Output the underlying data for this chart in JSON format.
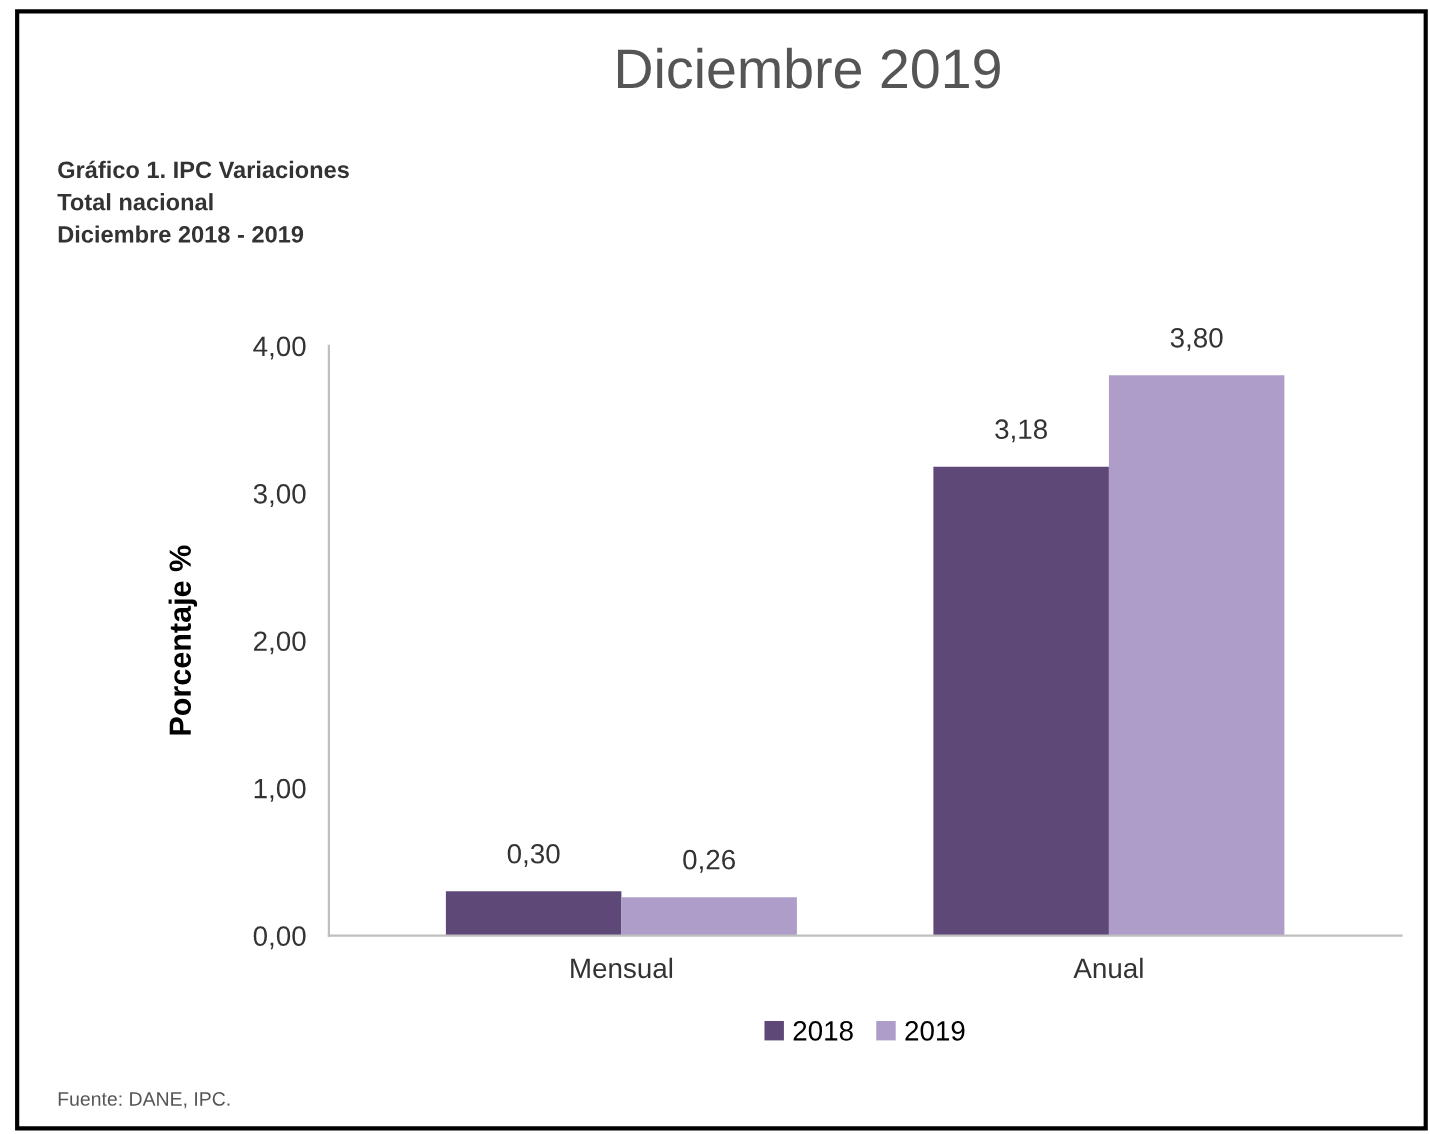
{
  "chart_data": {
    "type": "bar",
    "title": "Diciembre 2019",
    "subtitle": "Gráfico 1. IPC Variaciones\nTotal nacional\nDiciembre 2018 - 2019",
    "ylabel": "Porcentaje %",
    "categories": [
      "Mensual",
      "Anual"
    ],
    "series": [
      {
        "name": "2018",
        "color": "#5e4878",
        "values": [
          0.3,
          3.18
        ],
        "value_labels": [
          "0,30",
          "3,18"
        ]
      },
      {
        "name": "2019",
        "color": "#ae9dc8",
        "values": [
          0.26,
          3.8
        ],
        "value_labels": [
          "0,26",
          "3,80"
        ]
      }
    ],
    "ylim": [
      0,
      4
    ],
    "yticks": [
      {
        "value": 0,
        "label": "0,00"
      },
      {
        "value": 1,
        "label": "1,00"
      },
      {
        "value": 2,
        "label": "2,00"
      },
      {
        "value": 3,
        "label": "3,00"
      },
      {
        "value": 4,
        "label": "4,00"
      }
    ],
    "grid": false,
    "legend": "bottom",
    "annotations": [
      "Fuente: DANE, IPC."
    ]
  }
}
